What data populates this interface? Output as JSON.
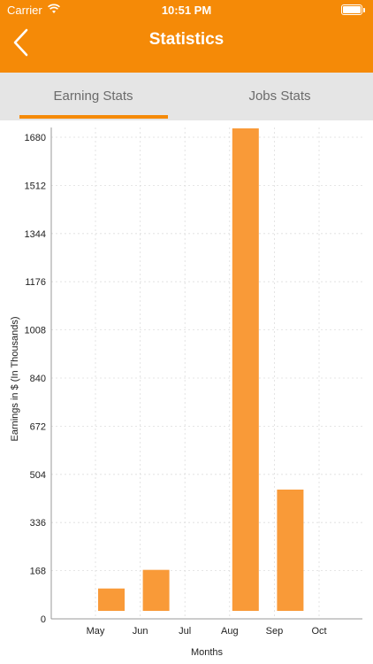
{
  "status_bar": {
    "carrier": "Carrier",
    "time": "10:51 PM"
  },
  "nav": {
    "title": "Statistics",
    "back_icon": "chevron-left-icon"
  },
  "tabs": [
    {
      "label": "Earning Stats",
      "selected": true
    },
    {
      "label": "Jobs Stats",
      "selected": false
    }
  ],
  "colors": {
    "accent": "#f58a07",
    "bar": "#f99a38",
    "tab_bg": "#e5e5e5"
  },
  "chart_data": {
    "type": "bar",
    "categories": [
      "May",
      "Jun",
      "Jul",
      "Aug",
      "Sep",
      "Oct"
    ],
    "values": [
      75,
      140,
      0,
      1680,
      420,
      0
    ],
    "xlabel": "Months",
    "ylabel": "Earnings in $ (In Thousands)",
    "yticks": [
      "0",
      "168",
      "336",
      "504",
      "672",
      "840",
      "1008",
      "1176",
      "1344",
      "1512",
      "1680"
    ],
    "ylim": [
      0,
      1680
    ],
    "grid": true
  }
}
